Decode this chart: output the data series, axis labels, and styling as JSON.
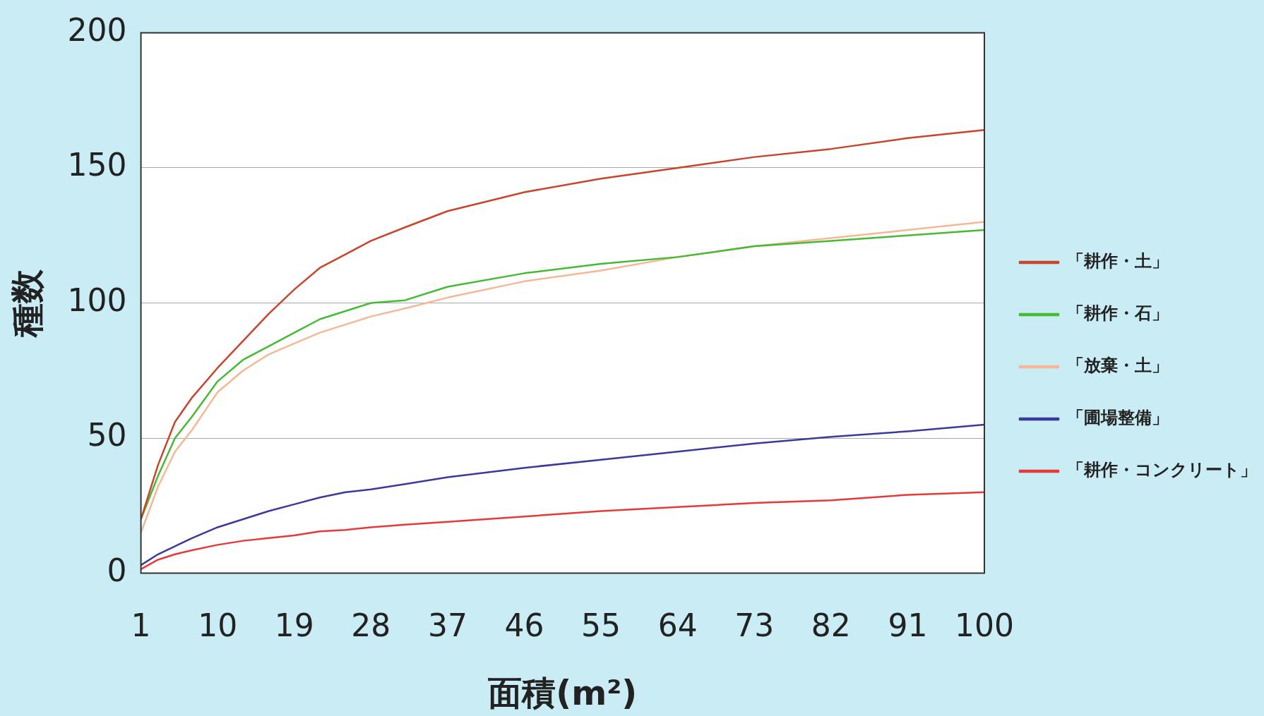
{
  "chart_data": {
    "type": "line",
    "xlabel": "面積(m²)",
    "ylabel": "種数",
    "x": [
      1,
      3,
      5,
      7,
      10,
      13,
      16,
      19,
      22,
      25,
      28,
      32,
      37,
      46,
      55,
      64,
      73,
      82,
      91,
      100
    ],
    "xlim": [
      1,
      100
    ],
    "xticks": [
      1,
      10,
      19,
      28,
      37,
      46,
      55,
      64,
      73,
      82,
      91,
      100
    ],
    "ylim": [
      0,
      200
    ],
    "yticks": [
      0,
      50,
      100,
      150,
      200
    ],
    "grid": "y",
    "legend": "right",
    "marker": "none",
    "line_style": "solid",
    "series": [
      {
        "name": "「耕作・土」",
        "color": "#c8442c",
        "values": [
          20,
          40,
          56,
          65,
          76,
          86,
          96,
          105,
          113,
          118,
          123,
          128,
          134,
          141,
          146,
          150,
          154,
          157,
          161,
          164
        ]
      },
      {
        "name": "「耕作・石」",
        "color": "#44bb33",
        "values": [
          20,
          36,
          50,
          58,
          71,
          79,
          84,
          89,
          94,
          97,
          100,
          101,
          106,
          111,
          114.5,
          117,
          121,
          123,
          125,
          127
        ]
      },
      {
        "name": "「放棄・土」",
        "color": "#f4b896",
        "values": [
          15,
          32,
          45,
          53,
          67,
          75,
          81,
          85,
          89,
          92,
          95,
          98,
          102,
          108,
          112,
          117,
          121,
          124,
          127,
          130
        ]
      },
      {
        "name": "「圃場整備」",
        "color": "#3a3a9a",
        "values": [
          3,
          7,
          10,
          13,
          17,
          20,
          23,
          25.5,
          28,
          30,
          31,
          33,
          35.5,
          39,
          42,
          45,
          48,
          50.5,
          52.5,
          55
        ]
      },
      {
        "name": "「耕作・コンクリート」",
        "color": "#e83838",
        "values": [
          1.5,
          5,
          7,
          8.5,
          10.5,
          12,
          13,
          14,
          15.5,
          16,
          17,
          18,
          19,
          21,
          23,
          24.5,
          26,
          27,
          29,
          30
        ]
      }
    ]
  }
}
